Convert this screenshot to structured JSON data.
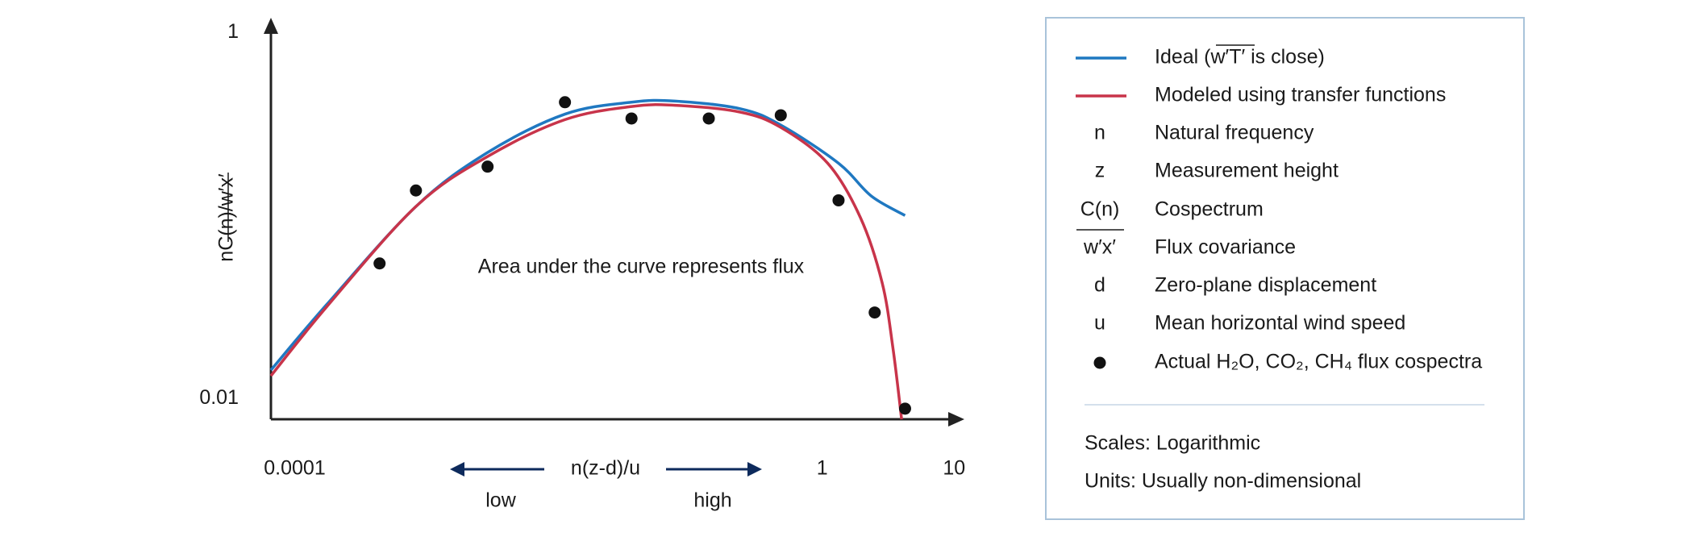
{
  "chart_data": {
    "type": "line",
    "y_label": "nC(n)/w′x′",
    "x_label": "n(z-d)/u",
    "x_low_label": "low",
    "x_high_label": "high",
    "annotation": "Area under the curve represents flux",
    "log_scale": true,
    "xlim": [
      6.6e-05,
      11.8
    ],
    "ylim": [
      0.0077,
      1.18
    ],
    "xticks": [
      {
        "value": 0.0001,
        "label": "0.0001"
      },
      1,
      10
    ],
    "yticks": [
      0.01,
      1
    ],
    "series": [
      {
        "name": "Ideal (w′T′ is close)",
        "type": "line",
        "color": "#1f78c1",
        "x": [
          6.6e-05,
          0.000174,
          0.00083,
          0.0029,
          0.0112,
          0.0358,
          0.0766,
          0.24,
          0.485,
          1.33,
          2.35,
          4.25
        ],
        "values": [
          0.0143,
          0.0325,
          0.112,
          0.221,
          0.358,
          0.416,
          0.422,
          0.383,
          0.312,
          0.193,
          0.128,
          0.1
        ]
      },
      {
        "name": "Modeled using transfer functions",
        "type": "line",
        "color": "#c8344a",
        "x": [
          6.6e-05,
          0.000174,
          0.00083,
          0.0029,
          0.0112,
          0.0358,
          0.0766,
          0.24,
          0.485,
          1.1,
          1.95,
          2.85,
          3.44,
          4.0
        ],
        "values": [
          0.0133,
          0.0316,
          0.112,
          0.21,
          0.334,
          0.394,
          0.4,
          0.367,
          0.303,
          0.193,
          0.0973,
          0.0428,
          0.0188,
          0.0077
        ]
      },
      {
        "name": "Actual H₂O, CO₂, CH₄ flux cospectra",
        "type": "scatter",
        "color": "#111111",
        "x": [
          0.00044,
          0.00083,
          0.0029,
          0.0112,
          0.0358,
          0.138,
          0.485,
          1.33,
          2.5,
          4.25
        ],
        "values": [
          0.0547,
          0.137,
          0.185,
          0.416,
          0.339,
          0.339,
          0.353,
          0.121,
          0.0295,
          0.0088
        ]
      }
    ],
    "glossary": [
      {
        "symbol": "n",
        "text": "Natural frequency"
      },
      {
        "symbol": "z",
        "text": "Measurement height"
      },
      {
        "symbol": "C(n)",
        "text": "Cospectrum"
      },
      {
        "symbol": "w′x′",
        "text": "Flux covariance"
      },
      {
        "symbol": "d",
        "text": "Zero-plane displacement"
      },
      {
        "symbol": "u",
        "text": "Mean horizontal wind speed"
      }
    ],
    "notes": [
      "Scales: Logarithmic",
      "Units: Usually non-dimensional"
    ]
  }
}
